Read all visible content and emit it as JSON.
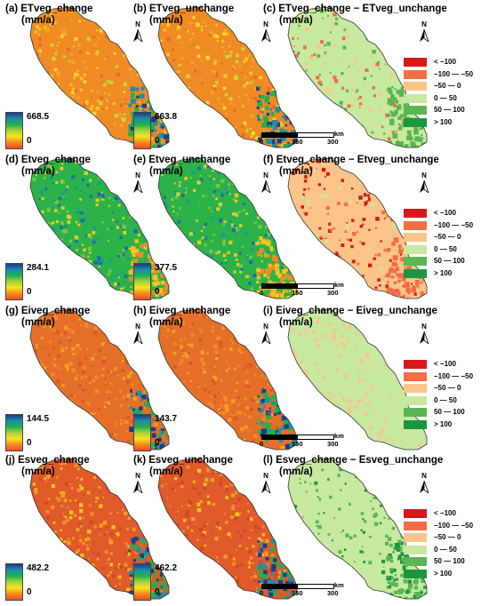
{
  "panels": [
    {
      "id": "a",
      "label": "(a)",
      "title": "ETveg_change",
      "unit": "(mm/a)",
      "kind": "value",
      "max": "668.5",
      "min": "0",
      "scheme": "et"
    },
    {
      "id": "b",
      "label": "(b)",
      "title": "ETveg_unchange",
      "unit": "(mm/a)",
      "kind": "value",
      "max": "663.8",
      "min": "0",
      "scheme": "et"
    },
    {
      "id": "c",
      "label": "(c)",
      "title": "ETveg_change − ETveg_unchange",
      "unit": "(mm/a)",
      "kind": "diff",
      "scheme": "diff_et"
    },
    {
      "id": "d",
      "label": "(d)",
      "title": "Etveg_change",
      "unit": "(mm/a)",
      "kind": "value",
      "max": "284.1",
      "min": "0",
      "scheme": "tveg"
    },
    {
      "id": "e",
      "label": "(e)",
      "title": "Etveg_unchange",
      "unit": "(mm/a)",
      "kind": "value",
      "max": "377.5",
      "min": "0",
      "scheme": "tveg"
    },
    {
      "id": "f",
      "label": "(f)",
      "title": "Etveg_change − Etveg_unchange",
      "unit": "(mm/a)",
      "kind": "diff",
      "scheme": "diff_t"
    },
    {
      "id": "g",
      "label": "(g)",
      "title": "Eiveg_change",
      "unit": "(mm/a)",
      "kind": "value",
      "max": "144.5",
      "min": "0",
      "scheme": "ei"
    },
    {
      "id": "h",
      "label": "(h)",
      "title": "Eiveg_unchange",
      "unit": "(mm/a)",
      "kind": "value",
      "max": "143.7",
      "min": "0",
      "scheme": "ei"
    },
    {
      "id": "i",
      "label": "(i)",
      "title": "Eiveg_change − Eiveg_unchange",
      "unit": "(mm/a)",
      "kind": "diff",
      "scheme": "diff_ei"
    },
    {
      "id": "j",
      "label": "(j)",
      "title": "Esveg_change",
      "unit": "(mm/a)",
      "kind": "value",
      "max": "482.2",
      "min": "0",
      "scheme": "es"
    },
    {
      "id": "k",
      "label": "(k)",
      "title": "Esveg_unchange",
      "unit": "(mm/a)",
      "kind": "value",
      "max": "462.2",
      "min": "0",
      "scheme": "es"
    },
    {
      "id": "l",
      "label": "(l)",
      "title": "Esveg_change − Esveg_unchange",
      "unit": "(mm/a)",
      "kind": "diff",
      "scheme": "diff_es"
    }
  ],
  "north_arrow": {
    "letter": "N"
  },
  "scale_bar": {
    "ticks": [
      "0",
      "150",
      "300"
    ],
    "unit": "km"
  },
  "diff_legend": [
    {
      "label": "< −100",
      "color": "#d7191c"
    },
    {
      "label": "−100 — −50",
      "color": "#f46d43"
    },
    {
      "label": "−50 — 0",
      "color": "#fdc48a"
    },
    {
      "label": "0 — 50",
      "color": "#c7e9a0"
    },
    {
      "label": "50 — 100",
      "color": "#5ab552"
    },
    {
      "label": "> 100",
      "color": "#1a9641"
    }
  ],
  "colorbar_colors": [
    "#1f3b8a",
    "#1d8ea6",
    "#21b14c",
    "#a7d23b",
    "#f5e61f",
    "#f58a1f",
    "#f04e23"
  ]
}
